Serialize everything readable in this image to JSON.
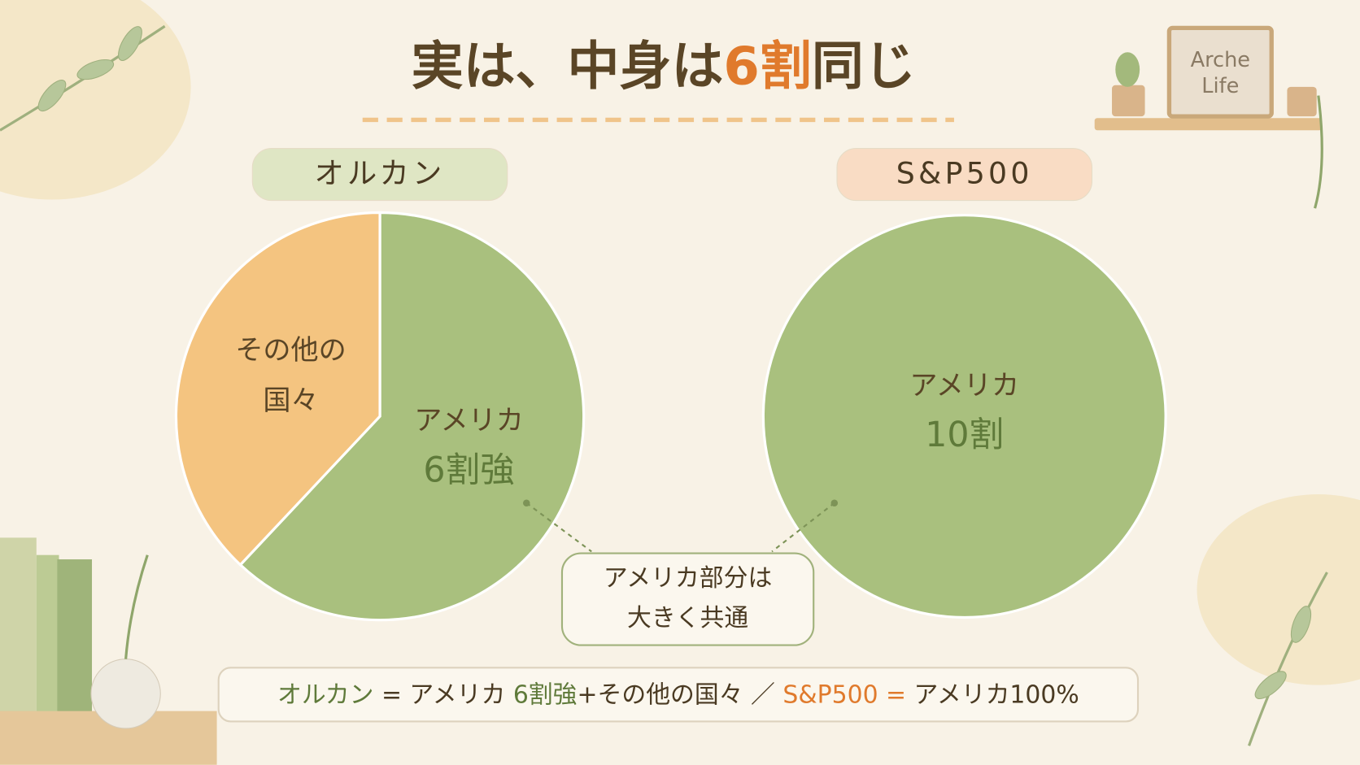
{
  "title": [
    {
      "text": "実は、中身は",
      "color": "#5a4526"
    },
    {
      "text": "6割",
      "color": "#e07a2c"
    },
    {
      "text": "同じ",
      "color": "#5a4526"
    }
  ],
  "brand": [
    "Arche",
    "Life"
  ],
  "chart_data": [
    {
      "type": "pie",
      "title": "オルカン",
      "title_bg": "#dfe6c4",
      "labels": [
        [
          "アメリカ",
          "6割強"
        ],
        [
          "その他の",
          "国々"
        ]
      ],
      "values": [
        62,
        38
      ],
      "colors": [
        "#a9c07e",
        "#f4c480"
      ],
      "label_colors": [
        [
          "#5a4526",
          "#5f7a3a"
        ],
        [
          "#5a4526",
          "#5a4526"
        ]
      ]
    },
    {
      "type": "pie",
      "title": "S&P500",
      "title_bg": "#f9dcc4",
      "labels": [
        [
          "アメリカ",
          "10割"
        ]
      ],
      "values": [
        100
      ],
      "colors": [
        "#a9c07e"
      ],
      "label_colors": [
        [
          "#5a4526",
          "#5f7a3a"
        ]
      ]
    }
  ],
  "callout": [
    "アメリカ部分は",
    "大きく共通"
  ],
  "footer": [
    {
      "text": "オルカン",
      "color": "#5f7a3a"
    },
    {
      "text": " = アメリカ ",
      "color": "#4a3a22"
    },
    {
      "text": "6割強",
      "color": "#5f7a3a"
    },
    {
      "text": "+その他の国々 ／ ",
      "color": "#4a3a22"
    },
    {
      "text": "S&P500 = ",
      "color": "#e07a2c"
    },
    {
      "text": "アメリカ100%",
      "color": "#4a3a22"
    }
  ]
}
